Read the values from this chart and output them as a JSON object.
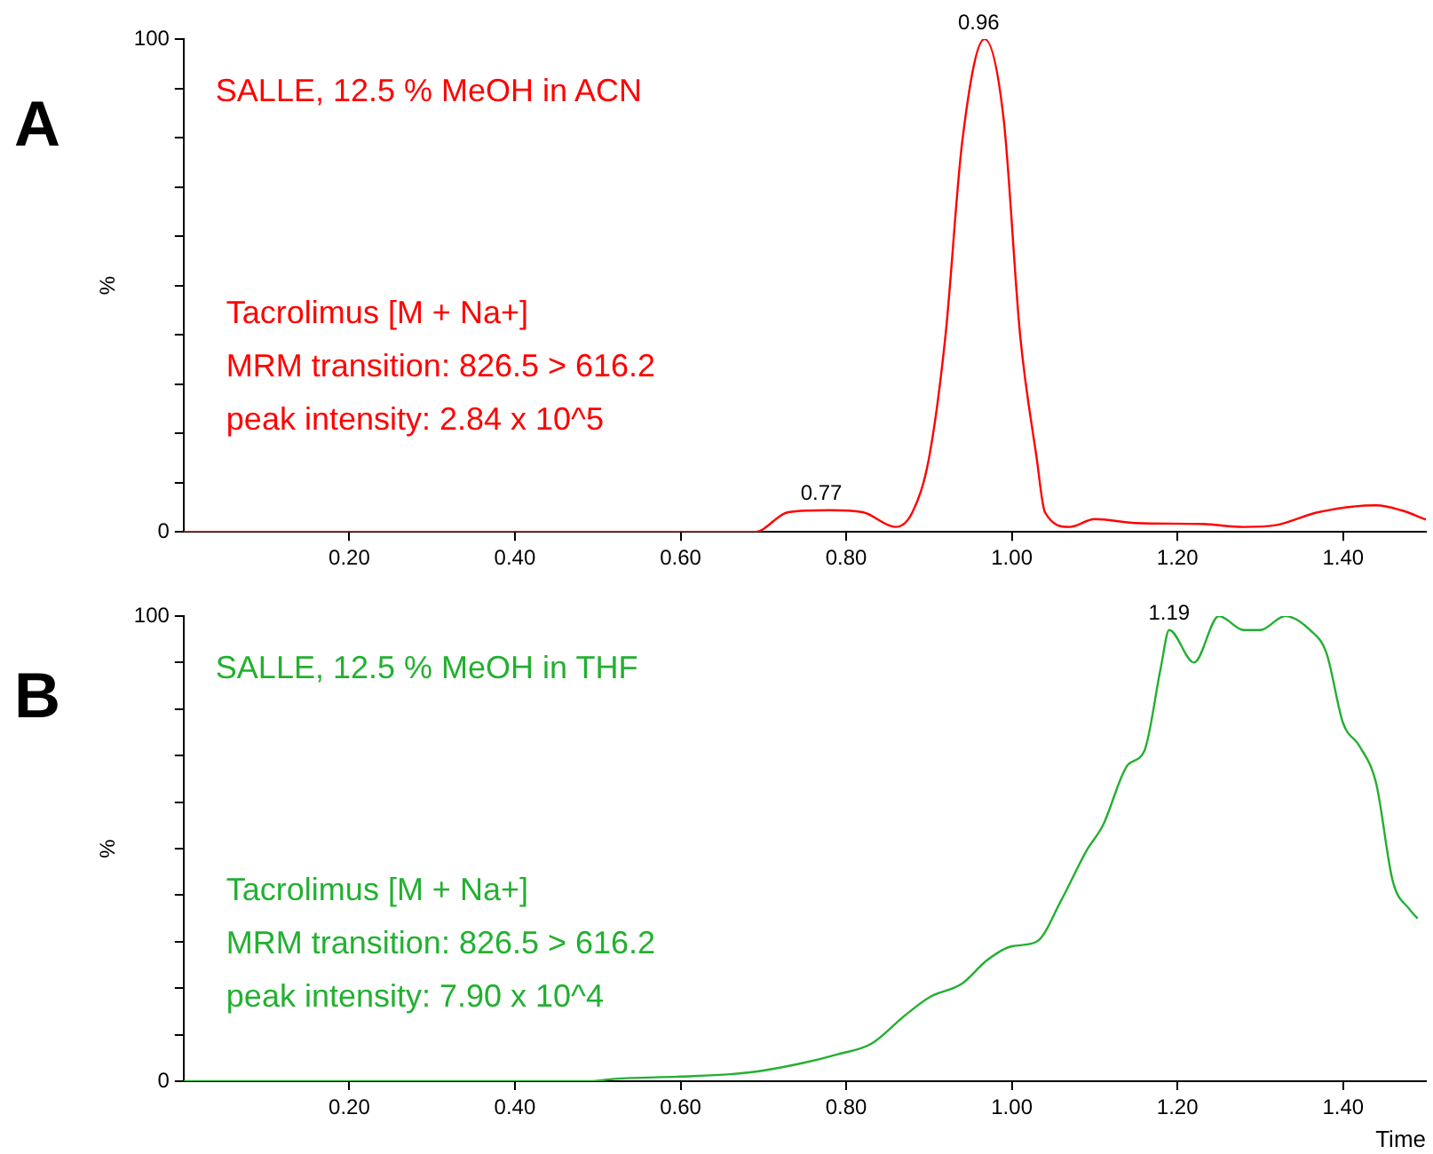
{
  "chart_data": [
    {
      "type": "line",
      "title": "A",
      "ylabel": "%",
      "xlim": [
        0,
        1.5
      ],
      "ylim": [
        0,
        100
      ],
      "xticks": [
        {
          "value": 0.2,
          "label": "0.20"
        },
        {
          "value": 0.4,
          "label": "0.40"
        },
        {
          "value": 0.6,
          "label": "0.60"
        },
        {
          "value": 0.8,
          "label": "0.80"
        },
        {
          "value": 1.0,
          "label": "1.00"
        },
        {
          "value": 1.2,
          "label": "1.20"
        },
        {
          "value": 1.4,
          "label": "1.40"
        }
      ],
      "yticks": [
        {
          "value": 0,
          "label": "0"
        },
        {
          "value": 10,
          "label": null
        },
        {
          "value": 20,
          "label": null
        },
        {
          "value": 30,
          "label": null
        },
        {
          "value": 40,
          "label": null
        },
        {
          "value": 50,
          "label": null
        },
        {
          "value": 60,
          "label": null
        },
        {
          "value": 70,
          "label": null
        },
        {
          "value": 80,
          "label": null
        },
        {
          "value": 90,
          "label": null
        },
        {
          "value": 100,
          "label": "100"
        }
      ],
      "x": [
        0,
        0.2,
        0.4,
        0.6,
        0.69,
        0.73,
        0.78,
        0.82,
        0.86,
        0.88,
        0.9,
        0.92,
        0.94,
        0.967,
        0.99,
        1.01,
        1.03,
        1.04,
        1.07,
        1.1,
        1.15,
        1.23,
        1.28,
        1.32,
        1.37,
        1.44,
        1.47,
        1.5
      ],
      "series": [
        {
          "color": "#ff0000",
          "values": [
            0,
            0,
            0,
            0,
            0,
            4,
            4.4,
            4,
            1,
            4,
            15,
            40,
            79,
            100,
            84,
            40,
            15,
            4,
            1,
            2.6,
            1.8,
            1.6,
            1,
            1.4,
            4,
            5.4,
            4.4,
            2.5
          ]
        }
      ],
      "annotations": [
        "SALLE, 12.5 % MeOH in ACN",
        "Tacrolimus [M + Na+]",
        "MRM transition: 826.5 > 616.2",
        "peak intensity: 2.84 x 10^5",
        {
          "text": "0.96",
          "x": 0.96,
          "y": 100
        },
        {
          "text": "0.77",
          "x": 0.77,
          "y": 4.4
        }
      ]
    },
    {
      "type": "line",
      "title": "B",
      "ylabel": "%",
      "xlabel": "Time",
      "xlim": [
        0,
        1.5
      ],
      "ylim": [
        0,
        100
      ],
      "xticks": [
        {
          "value": 0.2,
          "label": "0.20"
        },
        {
          "value": 0.4,
          "label": "0.40"
        },
        {
          "value": 0.6,
          "label": "0.60"
        },
        {
          "value": 0.8,
          "label": "0.80"
        },
        {
          "value": 1.0,
          "label": "1.00"
        },
        {
          "value": 1.2,
          "label": "1.20"
        },
        {
          "value": 1.4,
          "label": "1.40"
        }
      ],
      "yticks": [
        {
          "value": 0,
          "label": "0"
        },
        {
          "value": 10,
          "label": null
        },
        {
          "value": 20,
          "label": null
        },
        {
          "value": 30,
          "label": null
        },
        {
          "value": 40,
          "label": null
        },
        {
          "value": 50,
          "label": null
        },
        {
          "value": 60,
          "label": null
        },
        {
          "value": 70,
          "label": null
        },
        {
          "value": 80,
          "label": null
        },
        {
          "value": 90,
          "label": null
        },
        {
          "value": 100,
          "label": "100"
        }
      ],
      "x": [
        0,
        0.2,
        0.4,
        0.49,
        0.52,
        0.6,
        0.66,
        0.7,
        0.75,
        0.79,
        0.83,
        0.87,
        0.9,
        0.94,
        0.97,
        1.0,
        1.03,
        1.06,
        1.09,
        1.11,
        1.14,
        1.16,
        1.18,
        1.19,
        1.22,
        1.25,
        1.28,
        1.3,
        1.33,
        1.36,
        1.38,
        1.4,
        1.42,
        1.44,
        1.46,
        1.48,
        1.49
      ],
      "series": [
        {
          "color": "#22b030",
          "values": [
            0,
            0,
            0,
            0,
            0.5,
            1,
            1.5,
            2.3,
            4,
            5.8,
            8,
            14,
            18,
            21,
            26,
            29,
            30,
            39,
            49.5,
            55,
            68,
            71,
            89,
            97,
            90,
            100,
            97,
            97,
            100,
            97,
            92,
            77,
            72,
            64,
            43,
            37,
            35
          ]
        }
      ],
      "annotations": [
        "SALLE, 12.5 % MeOH in THF",
        "Tacrolimus [M + Na+]",
        "MRM transition: 826.5 > 616.2",
        "peak intensity: 7.90 x 10^4",
        {
          "text": "1.19",
          "x": 1.19,
          "y": 97
        }
      ]
    }
  ]
}
